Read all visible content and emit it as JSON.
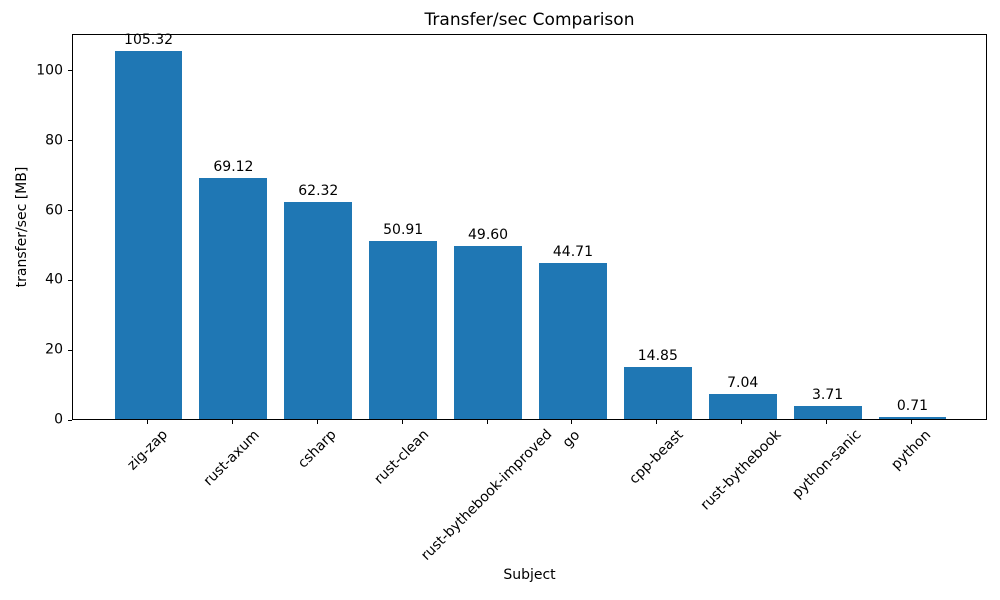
{
  "chart_data": {
    "type": "bar",
    "title": "Transfer/sec Comparison",
    "xlabel": "Subject",
    "ylabel": "transfer/sec [MB]",
    "categories": [
      "zig-zap",
      "rust-axum",
      "csharp",
      "rust-clean",
      "rust-bythebook-improved",
      "go",
      "cpp-beast",
      "rust-bythebook",
      "python-sanic",
      "python"
    ],
    "values": [
      105.32,
      69.12,
      62.32,
      50.91,
      49.6,
      44.71,
      14.85,
      7.04,
      3.71,
      0.71
    ],
    "value_labels": [
      "105.32",
      "69.12",
      "62.32",
      "50.91",
      "49.60",
      "44.71",
      "14.85",
      "7.04",
      "3.71",
      "0.71"
    ],
    "yticks": [
      0,
      20,
      40,
      60,
      80,
      100
    ],
    "ylim": [
      0,
      110.6
    ],
    "bar_color": "#1f77b4",
    "axis_color": "#000000",
    "text_color": "#000000",
    "background_color": "#ffffff",
    "grid": false,
    "legend": "none",
    "bar_width_fraction": 0.8,
    "x_tick_rotation_deg": 45
  }
}
